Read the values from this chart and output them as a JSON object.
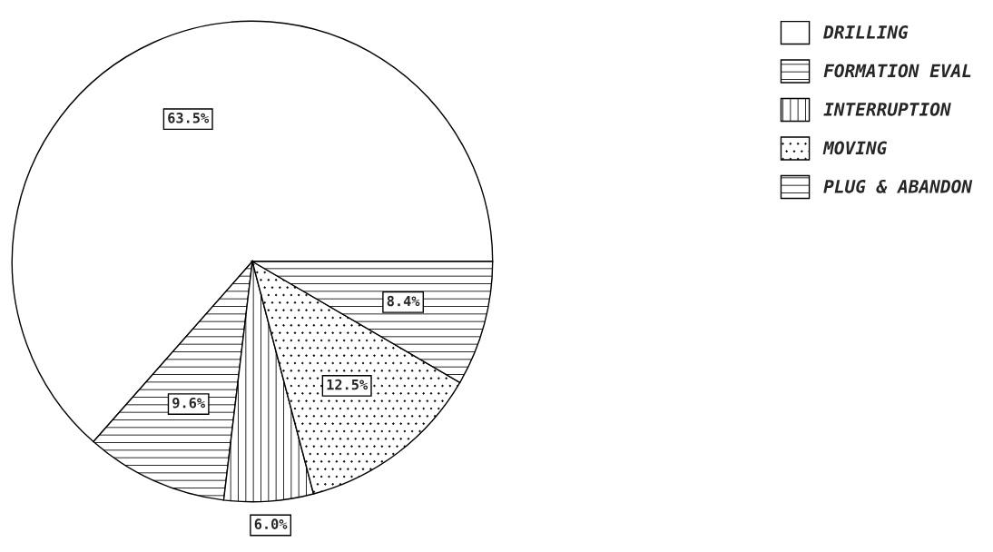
{
  "chart_data": {
    "type": "pie",
    "categories": [
      "DRILLING",
      "FORMATION EVAL",
      "INTERRUPTION",
      "MOVING",
      "PLUG & ABANDON"
    ],
    "values": [
      63.5,
      9.6,
      6.0,
      12.5,
      8.4
    ],
    "value_labels": [
      "63.5%",
      "9.6%",
      "6.0%",
      "12.5%",
      "8.4%"
    ],
    "legend": "top right"
  }
}
